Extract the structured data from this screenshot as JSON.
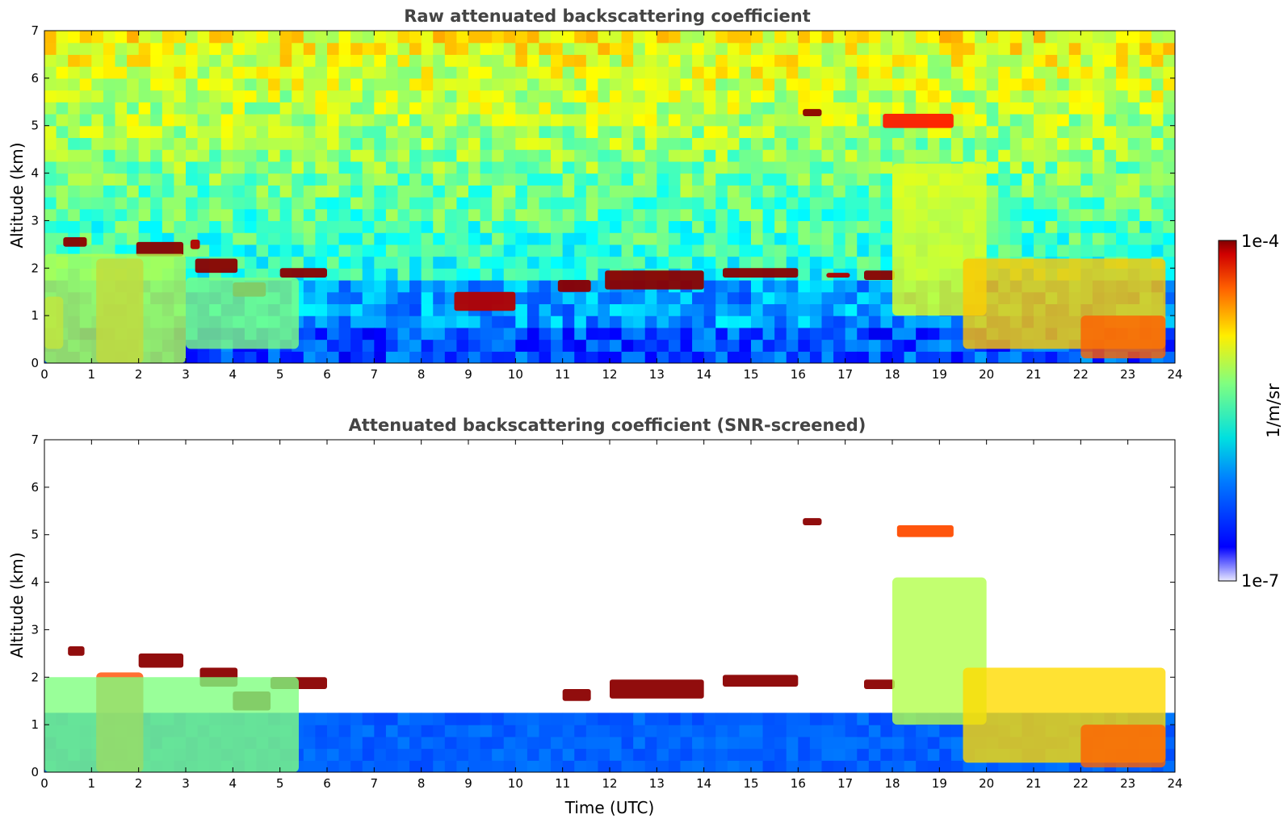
{
  "chart_data": [
    {
      "type": "heatmap",
      "title": "Raw attenuated backscattering coefficient",
      "xlabel": "",
      "ylabel": "Altitude (km)",
      "xlim": [
        0,
        24
      ],
      "ylim": [
        0,
        7
      ],
      "xticks": [
        "0",
        "1",
        "2",
        "3",
        "4",
        "5",
        "6",
        "7",
        "8",
        "9",
        "10",
        "11",
        "12",
        "13",
        "14",
        "15",
        "16",
        "17",
        "18",
        "19",
        "20",
        "21",
        "22",
        "23",
        "24"
      ],
      "yticks": [
        "0",
        "1",
        "2",
        "3",
        "4",
        "5",
        "6",
        "7"
      ],
      "screened": false,
      "features": [
        {
          "kind": "cloud-layer",
          "x": [
            0.4,
            0.9
          ],
          "y": [
            2.45,
            2.65
          ],
          "value": 1.0
        },
        {
          "kind": "cloud-layer",
          "x": [
            1.95,
            2.95
          ],
          "y": [
            2.25,
            2.55
          ],
          "value": 1.0
        },
        {
          "kind": "cloud-layer",
          "x": [
            3.1,
            3.3
          ],
          "y": [
            2.4,
            2.6
          ],
          "value": 0.95
        },
        {
          "kind": "cloud-layer",
          "x": [
            3.2,
            4.1
          ],
          "y": [
            1.9,
            2.2
          ],
          "value": 1.0
        },
        {
          "kind": "cloud-layer",
          "x": [
            4.0,
            4.7
          ],
          "y": [
            1.4,
            1.7
          ],
          "value": 1.0
        },
        {
          "kind": "cloud-layer",
          "x": [
            5.0,
            6.0
          ],
          "y": [
            1.8,
            2.0
          ],
          "value": 1.0
        },
        {
          "kind": "cloud-layer",
          "x": [
            8.7,
            10.0
          ],
          "y": [
            1.1,
            1.5
          ],
          "value": 0.95
        },
        {
          "kind": "cloud-layer",
          "x": [
            10.9,
            11.6
          ],
          "y": [
            1.5,
            1.75
          ],
          "value": 1.0
        },
        {
          "kind": "cloud-layer",
          "x": [
            11.9,
            14.0
          ],
          "y": [
            1.55,
            1.95
          ],
          "value": 1.0
        },
        {
          "kind": "cloud-layer",
          "x": [
            14.4,
            16.0
          ],
          "y": [
            1.8,
            2.0
          ],
          "value": 1.0
        },
        {
          "kind": "cloud-layer",
          "x": [
            16.6,
            17.1
          ],
          "y": [
            1.8,
            1.9
          ],
          "value": 0.95
        },
        {
          "kind": "cloud-layer",
          "x": [
            17.4,
            18.05
          ],
          "y": [
            1.75,
            1.95
          ],
          "value": 1.0
        },
        {
          "kind": "cloud-layer",
          "x": [
            16.1,
            16.5
          ],
          "y": [
            5.2,
            5.35
          ],
          "value": 1.0
        },
        {
          "kind": "cloud-layer",
          "x": [
            17.8,
            19.3
          ],
          "y": [
            4.95,
            5.25
          ],
          "value": 0.85
        },
        {
          "kind": "aerosol-plume",
          "x": [
            0.0,
            0.4
          ],
          "y": [
            0.3,
            1.4
          ],
          "value": 0.75
        },
        {
          "kind": "aerosol-plume",
          "x": [
            1.1,
            2.1
          ],
          "y": [
            0.0,
            2.2
          ],
          "value": 0.8
        },
        {
          "kind": "aerosol-plume",
          "x": [
            0.0,
            3.0
          ],
          "y": [
            0.0,
            2.3
          ],
          "value": 0.55
        },
        {
          "kind": "aerosol-plume",
          "x": [
            3.0,
            5.4
          ],
          "y": [
            0.3,
            1.8
          ],
          "value": 0.5
        },
        {
          "kind": "aerosol-plume",
          "x": [
            18.0,
            20.0
          ],
          "y": [
            1.0,
            4.2
          ],
          "value": 0.6
        },
        {
          "kind": "aerosol-plume",
          "x": [
            19.5,
            23.8
          ],
          "y": [
            0.3,
            2.2
          ],
          "value": 0.68
        },
        {
          "kind": "aerosol-plume",
          "x": [
            22.0,
            23.8
          ],
          "y": [
            0.1,
            1.0
          ],
          "value": 0.78
        }
      ]
    },
    {
      "type": "heatmap",
      "title": "Attenuated backscattering coefficient (SNR-screened)",
      "xlabel": "Time (UTC)",
      "ylabel": "Altitude (km)",
      "xlim": [
        0,
        24
      ],
      "ylim": [
        0,
        7
      ],
      "xticks": [
        "0",
        "1",
        "2",
        "3",
        "4",
        "5",
        "6",
        "7",
        "8",
        "9",
        "10",
        "11",
        "12",
        "13",
        "14",
        "15",
        "16",
        "17",
        "18",
        "19",
        "20",
        "21",
        "22",
        "23",
        "24"
      ],
      "yticks": [
        "0",
        "1",
        "2",
        "3",
        "4",
        "5",
        "6",
        "7"
      ],
      "screened": true,
      "features": [
        {
          "kind": "cloud-layer",
          "x": [
            0.5,
            0.85
          ],
          "y": [
            2.45,
            2.65
          ],
          "value": 1.0
        },
        {
          "kind": "cloud-layer",
          "x": [
            2.0,
            2.95
          ],
          "y": [
            2.2,
            2.5
          ],
          "value": 1.0
        },
        {
          "kind": "cloud-layer",
          "x": [
            3.3,
            4.1
          ],
          "y": [
            1.8,
            2.2
          ],
          "value": 1.0
        },
        {
          "kind": "cloud-layer",
          "x": [
            4.0,
            4.8
          ],
          "y": [
            1.3,
            1.7
          ],
          "value": 1.0
        },
        {
          "kind": "cloud-layer",
          "x": [
            4.8,
            6.0
          ],
          "y": [
            1.75,
            2.0
          ],
          "value": 1.0
        },
        {
          "kind": "cloud-layer",
          "x": [
            11.0,
            11.6
          ],
          "y": [
            1.5,
            1.75
          ],
          "value": 1.0
        },
        {
          "kind": "cloud-layer",
          "x": [
            12.0,
            14.0
          ],
          "y": [
            1.55,
            1.95
          ],
          "value": 1.0
        },
        {
          "kind": "cloud-layer",
          "x": [
            14.4,
            16.0
          ],
          "y": [
            1.8,
            2.05
          ],
          "value": 1.0
        },
        {
          "kind": "cloud-layer",
          "x": [
            17.4,
            18.05
          ],
          "y": [
            1.75,
            1.95
          ],
          "value": 1.0
        },
        {
          "kind": "cloud-layer",
          "x": [
            16.1,
            16.5
          ],
          "y": [
            5.2,
            5.35
          ],
          "value": 1.0
        },
        {
          "kind": "cloud-layer",
          "x": [
            18.1,
            19.3
          ],
          "y": [
            4.95,
            5.2
          ],
          "value": 0.8
        },
        {
          "kind": "aerosol-plume",
          "x": [
            1.1,
            2.1
          ],
          "y": [
            0.0,
            2.1
          ],
          "value": 0.8
        },
        {
          "kind": "aerosol-plume",
          "x": [
            0.0,
            5.4
          ],
          "y": [
            0.0,
            2.0
          ],
          "value": 0.5
        },
        {
          "kind": "aerosol-plume",
          "x": [
            18.0,
            20.0
          ],
          "y": [
            1.0,
            4.1
          ],
          "value": 0.55
        },
        {
          "kind": "aerosol-plume",
          "x": [
            19.5,
            23.8
          ],
          "y": [
            0.2,
            2.2
          ],
          "value": 0.66
        },
        {
          "kind": "aerosol-plume",
          "x": [
            22.0,
            23.8
          ],
          "y": [
            0.1,
            1.0
          ],
          "value": 0.78
        }
      ]
    }
  ],
  "colorbar": {
    "label": "1/m/sr",
    "max_label": "1e-4",
    "min_label": "1e-7",
    "colormap": "jet"
  },
  "colors": {
    "title": "#444444",
    "axis": "#000000",
    "background": "#ffffff"
  }
}
